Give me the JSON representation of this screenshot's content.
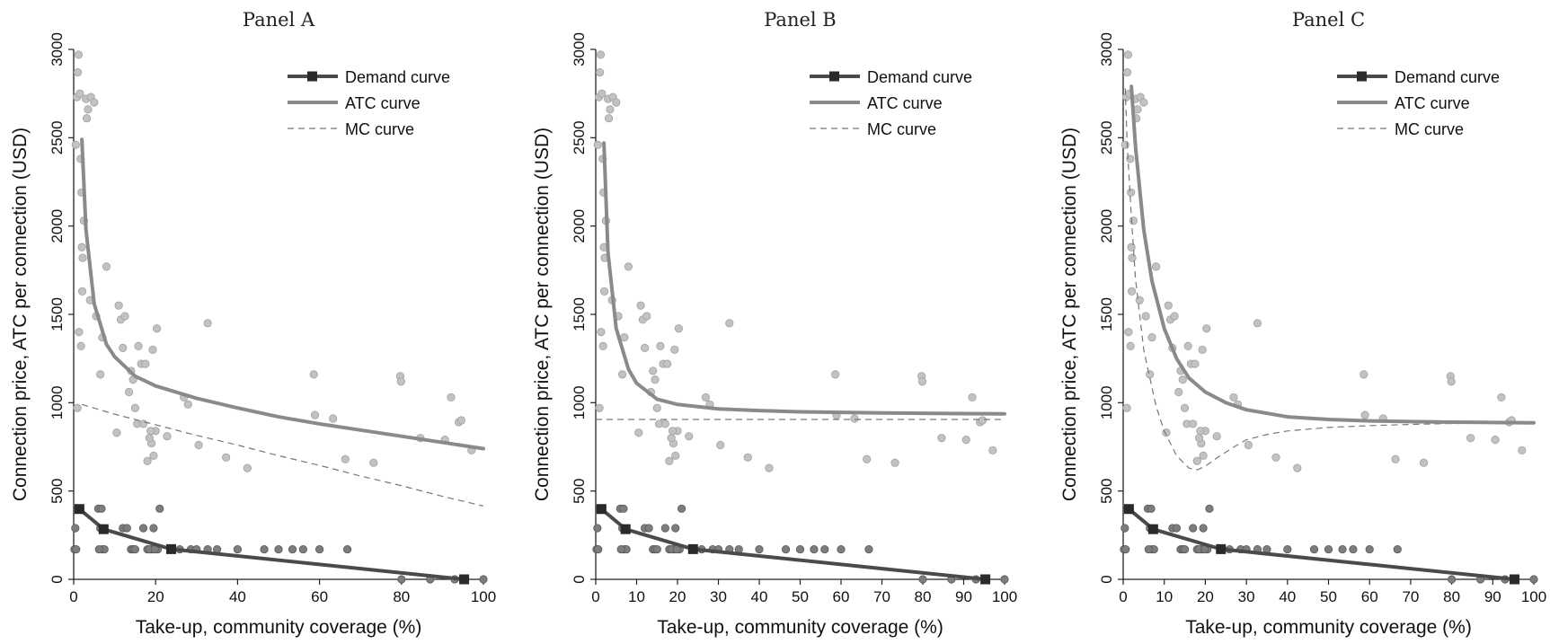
{
  "chart_data": [
    {
      "type": "scatter",
      "title": "Panel A",
      "xlabel": "Take-up, community coverage (%)",
      "ylabel": "Connection price, ATC per connection (USD)",
      "xlim": [
        0,
        100
      ],
      "ylim": [
        0,
        3000
      ],
      "xticks": [
        "0",
        "20",
        "40",
        "60",
        "80",
        "100"
      ],
      "yticks": [
        "0",
        "500",
        "1000",
        "1500",
        "2000",
        "2500",
        "3000"
      ],
      "legend": {
        "position": "top-right",
        "entries": [
          "Demand curve",
          "ATC curve",
          "MC curve"
        ]
      },
      "series": [
        {
          "name": "Demand curve",
          "color": "#4a4a4a",
          "x": [
            1.4,
            7.3,
            23.8,
            95.3
          ],
          "y": [
            398,
            284,
            171,
            0
          ]
        },
        {
          "name": "ATC curve",
          "color": "#8a8a8a",
          "x": [
            2,
            3,
            5,
            8,
            10,
            15,
            20,
            30,
            40,
            50,
            60,
            70,
            80,
            90,
            100
          ],
          "y": [
            2490,
            1980,
            1560,
            1330,
            1260,
            1150,
            1095,
            1025,
            970,
            920,
            880,
            845,
            810,
            775,
            740
          ]
        },
        {
          "name": "MC curve",
          "color": "#777777",
          "x": [
            2,
            10,
            20,
            30,
            40,
            50,
            60,
            70,
            80,
            90,
            100
          ],
          "y": [
            990,
            935,
            875,
            815,
            760,
            700,
            645,
            585,
            530,
            470,
            415
          ]
        },
        {
          "name": "ATC observations",
          "color": "#c2c2c2",
          "x": [
            0.5,
            0.8,
            1.0,
            1.2,
            1.5,
            1.7,
            1.9,
            2.0,
            2.2,
            2.5,
            3.0,
            3.5,
            3.2,
            4.2,
            5.0,
            5.5,
            4.0,
            7.0,
            8.0,
            6.5,
            2.1,
            1.3,
            1.8,
            0.9,
            10.5,
            11.0,
            11.5,
            12.5,
            12.0,
            13.5,
            14.0,
            14.5,
            15.0,
            15.5,
            16.5,
            17.5,
            18.0,
            19.0,
            19.5,
            20.0,
            19.3,
            18.5,
            20.3,
            18.8,
            22.8,
            26.9,
            27.9,
            30.5,
            32.7,
            37.2,
            42.4,
            58.6,
            58.9,
            63.3,
            66.3,
            73.2,
            79.7,
            79.9,
            84.6,
            90.6,
            92.1,
            94.0,
            94.6,
            97.1,
            17.0,
            15.8
          ],
          "y": [
            2460,
            2730,
            2870,
            2970,
            2750,
            2380,
            2190,
            1880,
            1820,
            2030,
            2720,
            2660,
            2610,
            2730,
            2700,
            1490,
            1580,
            1370,
            1770,
            1160,
            1630,
            1400,
            1320,
            970,
            830,
            1550,
            1470,
            1490,
            1310,
            1060,
            1180,
            1130,
            970,
            880,
            1220,
            1220,
            670,
            770,
            700,
            840,
            1300,
            800,
            1420,
            840,
            810,
            1030,
            990,
            760,
            1450,
            690,
            630,
            1160,
            930,
            910,
            680,
            660,
            1150,
            1120,
            800,
            790,
            1030,
            890,
            900,
            730,
            880,
            1320
          ]
        },
        {
          "name": "Demand observations",
          "color": "#7d7d7d",
          "x": [
            0.2,
            0.4,
            0.6,
            1.0,
            6.0,
            6.5,
            7.0,
            7.5,
            6.8,
            6.2,
            12.0,
            13.0,
            14.0,
            14.5,
            15.0,
            17.0,
            18.0,
            19.0,
            19.5,
            20.5,
            21.0,
            18.5,
            19.8,
            25.9,
            28.6,
            30.0,
            32.7,
            35.0,
            40.0,
            46.5,
            50.0,
            53.4,
            56.0,
            60.0,
            66.8,
            80.0,
            87.0,
            93.0,
            100.0
          ],
          "y": [
            170,
            290,
            170,
            398,
            400,
            290,
            170,
            170,
            400,
            170,
            290,
            290,
            170,
            170,
            170,
            290,
            170,
            170,
            290,
            170,
            400,
            170,
            170,
            170,
            170,
            170,
            170,
            170,
            170,
            170,
            170,
            170,
            170,
            170,
            170,
            0,
            0,
            0,
            0
          ]
        }
      ]
    },
    {
      "type": "scatter",
      "title": "Panel B",
      "xlabel": "Take-up, community coverage (%)",
      "ylabel": "Connection price, ATC per connection (USD)",
      "xlim": [
        0,
        100
      ],
      "ylim": [
        0,
        3000
      ],
      "xticks": [
        "0",
        "10",
        "20",
        "30",
        "40",
        "50",
        "60",
        "70",
        "80",
        "90",
        "100"
      ],
      "yticks": [
        "0",
        "500",
        "1000",
        "1500",
        "2000",
        "2500",
        "3000"
      ],
      "legend": {
        "position": "top-right",
        "entries": [
          "Demand curve",
          "ATC curve",
          "MC curve"
        ]
      },
      "series": [
        {
          "name": "Demand curve",
          "color": "#4a4a4a",
          "x": [
            1.4,
            7.3,
            23.8,
            95.3
          ],
          "y": [
            398,
            284,
            171,
            0
          ]
        },
        {
          "name": "ATC curve",
          "color": "#8a8a8a",
          "x": [
            2,
            3,
            5,
            8,
            10,
            15,
            20,
            30,
            40,
            50,
            60,
            70,
            80,
            90,
            100
          ],
          "y": [
            2470,
            1850,
            1420,
            1190,
            1110,
            1020,
            990,
            965,
            955,
            948,
            945,
            942,
            940,
            938,
            937
          ]
        },
        {
          "name": "MC curve",
          "color": "#777777",
          "x": [
            0,
            100
          ],
          "y": [
            905,
            905
          ]
        },
        {
          "name": "ATC observations",
          "color": "#c2c2c2",
          "x": [
            0.5,
            0.8,
            1.0,
            1.2,
            1.5,
            1.7,
            1.9,
            2.0,
            2.2,
            2.5,
            3.0,
            3.5,
            3.2,
            4.2,
            5.0,
            5.5,
            4.0,
            7.0,
            8.0,
            6.5,
            2.1,
            1.3,
            1.8,
            0.9,
            10.5,
            11.0,
            11.5,
            12.5,
            12.0,
            13.5,
            14.0,
            14.5,
            15.0,
            15.5,
            16.5,
            17.5,
            18.0,
            19.0,
            19.5,
            20.0,
            19.3,
            18.5,
            20.3,
            18.8,
            22.8,
            26.9,
            27.9,
            30.5,
            32.7,
            37.2,
            42.4,
            58.6,
            58.9,
            63.3,
            66.3,
            73.2,
            79.7,
            79.9,
            84.6,
            90.6,
            92.1,
            94.0,
            94.6,
            97.1,
            17.0,
            15.8
          ],
          "y": [
            2460,
            2730,
            2870,
            2970,
            2750,
            2380,
            2190,
            1880,
            1820,
            2030,
            2720,
            2660,
            2610,
            2730,
            2700,
            1490,
            1580,
            1370,
            1770,
            1160,
            1630,
            1400,
            1320,
            970,
            830,
            1550,
            1470,
            1490,
            1310,
            1060,
            1180,
            1130,
            970,
            880,
            1220,
            1220,
            670,
            770,
            700,
            840,
            1300,
            800,
            1420,
            840,
            810,
            1030,
            990,
            760,
            1450,
            690,
            630,
            1160,
            930,
            910,
            680,
            660,
            1150,
            1120,
            800,
            790,
            1030,
            890,
            900,
            730,
            880,
            1320
          ]
        },
        {
          "name": "Demand observations",
          "color": "#7d7d7d",
          "x": [
            0.2,
            0.4,
            0.6,
            1.0,
            6.0,
            6.5,
            7.0,
            7.5,
            6.8,
            6.2,
            12.0,
            13.0,
            14.0,
            14.5,
            15.0,
            17.0,
            18.0,
            19.0,
            19.5,
            20.5,
            21.0,
            18.5,
            19.8,
            25.9,
            28.6,
            30.0,
            32.7,
            35.0,
            40.0,
            46.5,
            50.0,
            53.4,
            56.0,
            60.0,
            66.8,
            80.0,
            87.0,
            93.0,
            100.0
          ],
          "y": [
            170,
            290,
            170,
            398,
            400,
            290,
            170,
            170,
            400,
            170,
            290,
            290,
            170,
            170,
            170,
            290,
            170,
            170,
            290,
            170,
            400,
            170,
            170,
            170,
            170,
            170,
            170,
            170,
            170,
            170,
            170,
            170,
            170,
            170,
            170,
            0,
            0,
            0,
            0
          ]
        }
      ]
    },
    {
      "type": "scatter",
      "title": "Panel C",
      "xlabel": "Take-up, community coverage (%)",
      "ylabel": "Connection price, ATC per connection (USD)",
      "xlim": [
        0,
        100
      ],
      "ylim": [
        0,
        3000
      ],
      "xticks": [
        "0",
        "10",
        "20",
        "30",
        "40",
        "50",
        "60",
        "70",
        "80",
        "90",
        "100"
      ],
      "yticks": [
        "0",
        "500",
        "1000",
        "1500",
        "2000",
        "2500",
        "3000"
      ],
      "legend": {
        "position": "top-right",
        "entries": [
          "Demand curve",
          "ATC curve",
          "MC curve"
        ]
      },
      "series": [
        {
          "name": "Demand curve",
          "color": "#4a4a4a",
          "x": [
            1.4,
            7.3,
            23.8,
            95.3
          ],
          "y": [
            398,
            284,
            171,
            0
          ]
        },
        {
          "name": "ATC curve",
          "color": "#8a8a8a",
          "x": [
            2,
            3,
            5,
            7,
            10,
            13,
            16,
            20,
            25,
            30,
            40,
            50,
            60,
            70,
            80,
            90,
            100
          ],
          "y": [
            2790,
            2450,
            1980,
            1690,
            1420,
            1250,
            1140,
            1060,
            1000,
            960,
            920,
            905,
            897,
            893,
            890,
            888,
            886
          ]
        },
        {
          "name": "MC curve",
          "color": "#777777",
          "x": [
            0.5,
            1,
            2,
            3,
            5,
            8,
            10,
            13,
            16,
            18,
            20,
            23,
            27,
            30,
            35,
            40,
            50,
            60,
            70,
            80,
            90,
            100
          ],
          "y": [
            2780,
            2450,
            2050,
            1700,
            1300,
            980,
            840,
            700,
            630,
            620,
            640,
            690,
            750,
            790,
            820,
            840,
            860,
            870,
            877,
            882,
            885,
            886
          ]
        },
        {
          "name": "ATC observations",
          "color": "#c2c2c2",
          "x": [
            0.5,
            0.8,
            1.0,
            1.2,
            1.5,
            1.7,
            1.9,
            2.0,
            2.2,
            2.5,
            3.0,
            3.5,
            3.2,
            4.2,
            5.0,
            5.5,
            4.0,
            7.0,
            8.0,
            6.5,
            2.1,
            1.3,
            1.8,
            0.9,
            10.5,
            11.0,
            11.5,
            12.5,
            12.0,
            13.5,
            14.0,
            14.5,
            15.0,
            15.5,
            16.5,
            17.5,
            18.0,
            19.0,
            19.5,
            20.0,
            19.3,
            18.5,
            20.3,
            18.8,
            22.8,
            26.9,
            27.9,
            30.5,
            32.7,
            37.2,
            42.4,
            58.6,
            58.9,
            63.3,
            66.3,
            73.2,
            79.7,
            79.9,
            84.6,
            90.6,
            92.1,
            94.0,
            94.6,
            97.1,
            17.0,
            15.8
          ],
          "y": [
            2460,
            2730,
            2870,
            2970,
            2750,
            2380,
            2190,
            1880,
            1820,
            2030,
            2720,
            2660,
            2610,
            2730,
            2700,
            1490,
            1580,
            1370,
            1770,
            1160,
            1630,
            1400,
            1320,
            970,
            830,
            1550,
            1470,
            1490,
            1310,
            1060,
            1180,
            1130,
            970,
            880,
            1220,
            1220,
            670,
            770,
            700,
            840,
            1300,
            800,
            1420,
            840,
            810,
            1030,
            990,
            760,
            1450,
            690,
            630,
            1160,
            930,
            910,
            680,
            660,
            1150,
            1120,
            800,
            790,
            1030,
            890,
            900,
            730,
            880,
            1320
          ]
        },
        {
          "name": "Demand observations",
          "color": "#7d7d7d",
          "x": [
            0.2,
            0.4,
            0.6,
            1.0,
            6.0,
            6.5,
            7.0,
            7.5,
            6.8,
            6.2,
            12.0,
            13.0,
            14.0,
            14.5,
            15.0,
            17.0,
            18.0,
            19.0,
            19.5,
            20.5,
            21.0,
            18.5,
            19.8,
            25.9,
            28.6,
            30.0,
            32.7,
            35.0,
            40.0,
            46.5,
            50.0,
            53.4,
            56.0,
            60.0,
            66.8,
            80.0,
            87.0,
            93.0,
            100.0
          ],
          "y": [
            170,
            290,
            170,
            398,
            400,
            290,
            170,
            170,
            400,
            170,
            290,
            290,
            170,
            170,
            170,
            290,
            170,
            170,
            290,
            170,
            400,
            170,
            170,
            170,
            170,
            170,
            170,
            170,
            170,
            170,
            170,
            170,
            170,
            170,
            170,
            0,
            0,
            0,
            0
          ]
        }
      ]
    }
  ]
}
